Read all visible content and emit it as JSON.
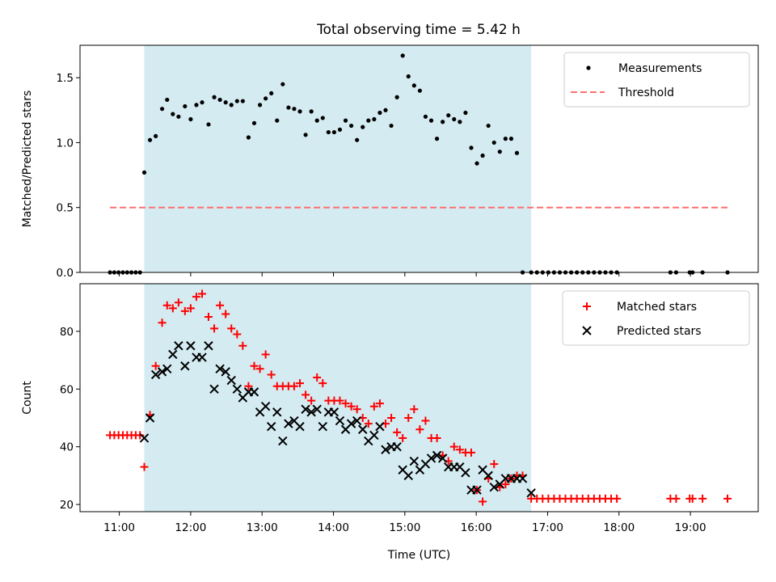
{
  "title": "Total observing time = 5.42 h",
  "colors": {
    "shade": "#add8e6",
    "measurement": "#000000",
    "threshold": "#ff6f6f",
    "matched": "#ff0000",
    "predicted": "#000000"
  },
  "chart_data": [
    {
      "type": "scatter",
      "ylabel": "Matched/Predicted stars",
      "ylim": [
        0,
        1.75
      ],
      "yticks": [
        "0.0",
        "0.5",
        "1.0",
        "1.5"
      ],
      "xlim": [
        10.45,
        19.95
      ],
      "shaded_x": [
        11.35,
        16.77
      ],
      "legend_position": "top-right",
      "legend": [
        "Measurements",
        "Threshold"
      ],
      "threshold": {
        "name": "Threshold",
        "y": 0.5,
        "x": [
          10.87,
          19.52
        ]
      },
      "series": [
        {
          "name": "Measurements",
          "x": [
            10.87,
            10.93,
            10.99,
            11.05,
            11.11,
            11.17,
            11.23,
            11.29,
            11.35,
            11.43,
            11.51,
            11.6,
            11.67,
            11.75,
            11.83,
            11.92,
            12.0,
            12.08,
            12.16,
            12.25,
            12.33,
            12.41,
            12.49,
            12.57,
            12.65,
            12.73,
            12.81,
            12.89,
            12.97,
            13.05,
            13.13,
            13.21,
            13.29,
            13.37,
            13.45,
            13.53,
            13.61,
            13.69,
            13.77,
            13.85,
            13.93,
            14.01,
            14.09,
            14.17,
            14.25,
            14.33,
            14.41,
            14.49,
            14.57,
            14.65,
            14.73,
            14.81,
            14.89,
            14.97,
            15.05,
            15.13,
            15.21,
            15.29,
            15.37,
            15.45,
            15.53,
            15.61,
            15.69,
            15.77,
            15.85,
            15.93,
            16.01,
            16.09,
            16.17,
            16.25,
            16.33,
            16.41,
            16.49,
            16.57,
            16.65,
            16.77,
            16.85,
            16.93,
            17.01,
            17.09,
            17.17,
            17.25,
            17.33,
            17.41,
            17.49,
            17.57,
            17.65,
            17.73,
            17.81,
            17.89,
            17.97,
            18.72,
            18.8,
            18.99,
            19.03,
            19.17,
            19.52
          ],
          "y": [
            0,
            0,
            0,
            0,
            0,
            0,
            0,
            0,
            0.77,
            1.02,
            1.05,
            1.26,
            1.33,
            1.22,
            1.2,
            1.28,
            1.18,
            1.29,
            1.31,
            1.14,
            1.35,
            1.33,
            1.31,
            1.29,
            1.32,
            1.32,
            1.04,
            1.15,
            1.29,
            1.34,
            1.38,
            1.17,
            1.45,
            1.27,
            1.26,
            1.24,
            1.06,
            1.24,
            1.17,
            1.19,
            1.08,
            1.08,
            1.1,
            1.17,
            1.13,
            1.02,
            1.12,
            1.17,
            1.18,
            1.23,
            1.25,
            1.13,
            1.35,
            1.67,
            1.51,
            1.44,
            1.4,
            1.2,
            1.17,
            1.03,
            1.16,
            1.21,
            1.18,
            1.16,
            1.23,
            0.96,
            0.84,
            0.9,
            1.13,
            1.0,
            0.93,
            1.03,
            1.03,
            0.92,
            0,
            0,
            0,
            0,
            0,
            0,
            0,
            0,
            0,
            0,
            0,
            0,
            0,
            0,
            0,
            0,
            0,
            0,
            0,
            0,
            0,
            0,
            0
          ]
        }
      ]
    },
    {
      "type": "scatter",
      "ylabel": "Count",
      "xlabel": "Time (UTC)",
      "ylim": [
        17.5,
        96.5
      ],
      "yticks": [
        "20",
        "40",
        "60",
        "80"
      ],
      "xlim": [
        10.45,
        19.95
      ],
      "xticks": [
        "11:00",
        "12:00",
        "13:00",
        "14:00",
        "15:00",
        "16:00",
        "17:00",
        "18:00",
        "19:00"
      ],
      "shaded_x": [
        11.35,
        16.77
      ],
      "legend_position": "top-right",
      "legend": [
        "Matched stars",
        "Predicted stars"
      ],
      "series": [
        {
          "name": "Matched stars",
          "marker": "+",
          "x": [
            10.87,
            10.93,
            10.99,
            11.05,
            11.11,
            11.17,
            11.23,
            11.29,
            11.35,
            11.43,
            11.51,
            11.6,
            11.67,
            11.75,
            11.83,
            11.92,
            12.0,
            12.08,
            12.16,
            12.25,
            12.33,
            12.41,
            12.49,
            12.57,
            12.65,
            12.73,
            12.81,
            12.89,
            12.97,
            13.05,
            13.13,
            13.21,
            13.29,
            13.37,
            13.45,
            13.53,
            13.61,
            13.69,
            13.77,
            13.85,
            13.93,
            14.01,
            14.09,
            14.17,
            14.25,
            14.33,
            14.41,
            14.49,
            14.57,
            14.65,
            14.73,
            14.81,
            14.89,
            14.97,
            15.05,
            15.13,
            15.21,
            15.29,
            15.37,
            15.45,
            15.53,
            15.61,
            15.69,
            15.77,
            15.85,
            15.93,
            16.01,
            16.09,
            16.17,
            16.25,
            16.33,
            16.41,
            16.49,
            16.57,
            16.65,
            16.77,
            16.85,
            16.93,
            17.01,
            17.09,
            17.17,
            17.25,
            17.33,
            17.41,
            17.49,
            17.57,
            17.65,
            17.73,
            17.81,
            17.89,
            17.97,
            18.72,
            18.8,
            18.99,
            19.03,
            19.17,
            19.52
          ],
          "y": [
            44,
            44,
            44,
            44,
            44,
            44,
            44,
            44,
            33,
            51,
            68,
            83,
            89,
            88,
            90,
            87,
            88,
            92,
            93,
            85,
            81,
            89,
            86,
            81,
            79,
            75,
            61,
            68,
            67,
            72,
            65,
            61,
            61,
            61,
            61,
            62,
            58,
            56,
            64,
            62,
            56,
            56,
            56,
            55,
            54,
            53,
            50,
            48,
            54,
            55,
            48,
            50,
            45,
            43,
            50,
            53,
            46,
            49,
            43,
            43,
            37,
            35,
            40,
            39,
            38,
            38,
            25,
            21,
            29,
            34,
            26,
            27,
            29,
            30,
            30,
            22,
            22,
            22,
            22,
            22,
            22,
            22,
            22,
            22,
            22,
            22,
            22,
            22,
            22,
            22,
            22,
            22,
            22,
            22,
            22,
            22,
            22
          ]
        },
        {
          "name": "Predicted stars",
          "marker": "x",
          "x": [
            11.35,
            11.43,
            11.51,
            11.6,
            11.67,
            11.75,
            11.83,
            11.92,
            12.0,
            12.08,
            12.16,
            12.25,
            12.33,
            12.41,
            12.49,
            12.57,
            12.65,
            12.73,
            12.81,
            12.89,
            12.97,
            13.05,
            13.13,
            13.21,
            13.29,
            13.37,
            13.45,
            13.53,
            13.61,
            13.69,
            13.77,
            13.85,
            13.93,
            14.01,
            14.09,
            14.17,
            14.25,
            14.33,
            14.41,
            14.49,
            14.57,
            14.65,
            14.73,
            14.81,
            14.89,
            14.97,
            15.05,
            15.13,
            15.21,
            15.29,
            15.37,
            15.45,
            15.53,
            15.61,
            15.69,
            15.77,
            15.85,
            15.93,
            16.01,
            16.09,
            16.17,
            16.25,
            16.33,
            16.41,
            16.49,
            16.57,
            16.65,
            16.77
          ],
          "y": [
            43,
            50,
            65,
            66,
            67,
            72,
            75,
            68,
            75,
            71,
            71,
            75,
            60,
            67,
            66,
            63,
            60,
            57,
            59,
            59,
            52,
            54,
            47,
            52,
            42,
            48,
            49,
            47,
            53,
            52,
            53,
            47,
            52,
            52,
            49,
            46,
            48,
            49,
            46,
            42,
            44,
            47,
            39,
            40,
            40,
            32,
            30,
            35,
            32,
            34,
            36,
            37,
            36,
            33,
            33,
            33,
            31,
            25,
            25,
            32,
            30,
            26,
            27,
            29,
            29,
            29,
            29,
            24
          ]
        }
      ]
    }
  ]
}
